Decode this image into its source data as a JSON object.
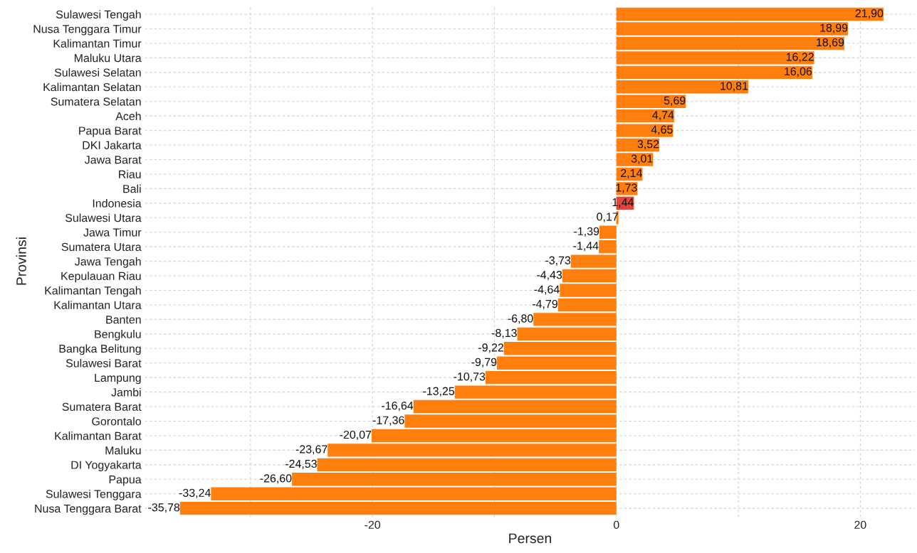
{
  "chart_data": {
    "type": "bar",
    "orientation": "horizontal",
    "xlabel": "Persen",
    "ylabel": "Provinsi",
    "categories": [
      "Sulawesi Tengah",
      "Nusa Tenggara Timur",
      "Kalimantan Timur",
      "Maluku Utara",
      "Sulawesi Selatan",
      "Kalimantan Selatan",
      "Sumatera Selatan",
      "Aceh",
      "Papua Barat",
      "DKI Jakarta",
      "Jawa Barat",
      "Riau",
      "Bali",
      "Indonesia",
      "Sulawesi Utara",
      "Jawa Timur",
      "Sumatera Utara",
      "Jawa Tengah",
      "Kepulauan Riau",
      "Kalimantan Tengah",
      "Kalimantan Utara",
      "Banten",
      "Bengkulu",
      "Bangka Belitung",
      "Sulawesi Barat",
      "Lampung",
      "Jambi",
      "Sumatera Barat",
      "Gorontalo",
      "Kalimantan Barat",
      "Maluku",
      "DI Yogyakarta",
      "Papua",
      "Sulawesi Tenggara",
      "Nusa Tenggara Barat"
    ],
    "values": [
      21.9,
      18.99,
      18.69,
      16.22,
      16.06,
      10.81,
      5.69,
      4.74,
      4.65,
      3.52,
      3.01,
      2.14,
      1.73,
      1.44,
      0.17,
      -1.39,
      -1.44,
      -3.73,
      -4.43,
      -4.64,
      -4.79,
      -6.8,
      -8.13,
      -9.22,
      -9.79,
      -10.73,
      -13.25,
      -16.64,
      -17.36,
      -20.07,
      -23.67,
      -24.53,
      -26.6,
      -33.24,
      -35.78
    ],
    "value_labels": [
      "21,90",
      "18,99",
      "18,69",
      "16,22",
      "16,06",
      "10,81",
      "5,69",
      "4,74",
      "4,65",
      "3,52",
      "3,01",
      "2,14",
      "1,73",
      "1,44",
      "0,17",
      "-1,39",
      "-1,44",
      "-3,73",
      "-4,43",
      "-4,64",
      "-4,79",
      "-6,80",
      "-8,13",
      "-9,22",
      "-9,79",
      "-10,73",
      "-13,25",
      "-16,64",
      "-17,36",
      "-20,07",
      "-23,67",
      "-24,53",
      "-26,60",
      "-33,24",
      "-35,78"
    ],
    "colors": [
      "#ff7f0e",
      "#ff7f0e",
      "#ff7f0e",
      "#ff7f0e",
      "#ff7f0e",
      "#ff7f0e",
      "#ff7f0e",
      "#ff7f0e",
      "#ff7f0e",
      "#ff7f0e",
      "#ff7f0e",
      "#ff7f0e",
      "#ff7f0e",
      "#e0473c",
      "#ff7f0e",
      "#ff7f0e",
      "#ff7f0e",
      "#ff7f0e",
      "#ff7f0e",
      "#ff7f0e",
      "#ff7f0e",
      "#ff7f0e",
      "#ff7f0e",
      "#ff7f0e",
      "#ff7f0e",
      "#ff7f0e",
      "#ff7f0e",
      "#ff7f0e",
      "#ff7f0e",
      "#ff7f0e",
      "#ff7f0e",
      "#ff7f0e",
      "#ff7f0e",
      "#ff7f0e",
      "#ff7f0e"
    ],
    "xlim": [
      -38.66,
      24.5
    ],
    "xticks": [
      {
        "value": -30,
        "label": null
      },
      -20,
      {
        "value": -10,
        "label": null
      },
      0,
      {
        "value": 10,
        "label": null
      },
      20
    ],
    "grid": true
  }
}
